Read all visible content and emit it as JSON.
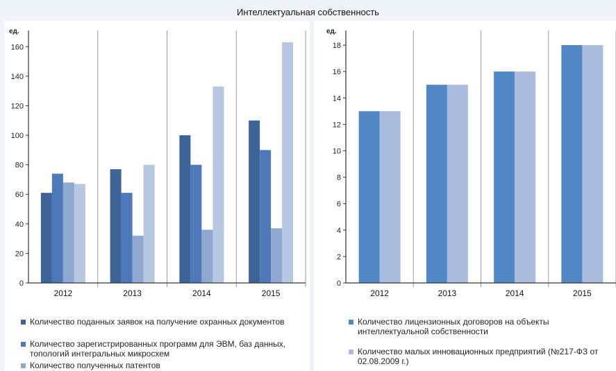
{
  "title": "Интеллектуальная  собственность",
  "colors": {
    "dark": "#3d6497",
    "mid": "#4d79b8",
    "light": "#8fa8cf",
    "pale": "#b6c7e1",
    "right_a": "#5287c6",
    "right_b": "#a9bcde"
  },
  "chart_data": [
    {
      "type": "bar",
      "unit_label": "ед.",
      "categories": [
        "2012",
        "2013",
        "2014",
        "2015"
      ],
      "ylim": [
        0,
        170
      ],
      "yticks": [
        0,
        20,
        40,
        60,
        80,
        100,
        120,
        140,
        160
      ],
      "grid": "vertical separators",
      "legend_position": "bottom",
      "series": [
        {
          "name": "Количество поданных заявок на получение охранных документов",
          "color": "#3d6497",
          "values": [
            61,
            77,
            100,
            110
          ]
        },
        {
          "name": "Количество зарегистрированных программ для ЭВМ, баз данных, топологий интегральных микросхем",
          "color": "#4d79b8",
          "values": [
            74,
            61,
            80,
            90
          ]
        },
        {
          "name": "Количество полученных патентов",
          "color": "#8fa8cf",
          "values": [
            68,
            32,
            36,
            37
          ]
        },
        {
          "name": "",
          "color": "#b6c7e1",
          "values": [
            67,
            80,
            133,
            163
          ]
        }
      ]
    },
    {
      "type": "bar",
      "unit_label": "ед.",
      "categories": [
        "2012",
        "2013",
        "2014",
        "2015"
      ],
      "ylim": [
        0,
        19
      ],
      "yticks": [
        0,
        2,
        4,
        6,
        8,
        10,
        12,
        14,
        16,
        18
      ],
      "grid": "vertical separators",
      "legend_position": "bottom",
      "series": [
        {
          "name": "Количество лицензионных договоров на объекты интеллектуальной собственности",
          "color": "#5287c6",
          "values": [
            13,
            15,
            16,
            18
          ]
        },
        {
          "name": "Количество малых инновационных предприятий (№217-ФЗ от 02.08.2009 г.)",
          "color": "#a9bcde",
          "values": [
            13,
            15,
            16,
            18
          ]
        }
      ]
    }
  ],
  "legends": {
    "left": [
      "Количество поданных заявок на получение охранных документов",
      "Количество зарегистрированных программ для ЭВМ, баз данных, топологий интегральных микросхем",
      "Количество полученных патентов"
    ],
    "right": [
      "Количество лицензионных договоров на объекты интеллектуальной собственности",
      "Количество малых инновационных предприятий (№217-ФЗ от 02.08.2009 г.)"
    ]
  }
}
